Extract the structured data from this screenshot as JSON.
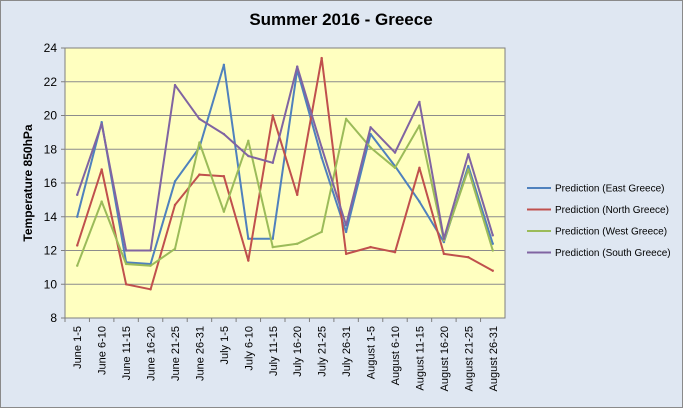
{
  "chart_data": {
    "type": "line",
    "title": "Summer 2016 - Greece",
    "xlabel": "",
    "ylabel": "Temperature 850hPa",
    "ylim": [
      8,
      24
    ],
    "yticks": [
      8,
      10,
      12,
      14,
      16,
      18,
      20,
      22,
      24
    ],
    "grid": "horizontal",
    "legend_position": "right",
    "categories": [
      "June 1-5",
      "June 6-10",
      "June 11-15",
      "June 16-20",
      "June 21-25",
      "June 26-31",
      "July 1-5",
      "July 6-10",
      "July 11-15",
      "July 16-20",
      "July 21-25",
      "July 26-31",
      "August 1-5",
      "August 6-10",
      "August 11-15",
      "August 16-20",
      "August 21-25",
      "August 26-31"
    ],
    "series": [
      {
        "name": "Prediction (East Greece)",
        "color": "#4f81bd",
        "values": [
          14.0,
          19.6,
          11.3,
          11.2,
          16.1,
          18.1,
          23.0,
          12.7,
          12.7,
          22.7,
          17.5,
          13.1,
          18.9,
          17.0,
          14.9,
          12.5,
          17.0,
          12.4
        ]
      },
      {
        "name": "Prediction (North Greece)",
        "color": "#c0504d",
        "values": [
          12.3,
          16.8,
          10.0,
          9.7,
          14.7,
          16.5,
          16.4,
          11.4,
          20.0,
          15.3,
          23.4,
          11.8,
          12.2,
          11.9,
          16.9,
          11.8,
          11.6,
          10.8
        ]
      },
      {
        "name": "Prediction (West Greece)",
        "color": "#9bbb59",
        "values": [
          11.1,
          14.9,
          11.2,
          11.1,
          12.1,
          18.4,
          14.3,
          18.5,
          12.2,
          12.4,
          13.1,
          19.8,
          18.1,
          16.9,
          19.4,
          12.6,
          16.8,
          12.0
        ]
      },
      {
        "name": "Prediction (South Greece)",
        "color": "#8064a2",
        "values": [
          15.3,
          19.5,
          12.0,
          12.0,
          21.8,
          19.8,
          18.9,
          17.6,
          17.2,
          22.9,
          18.1,
          13.5,
          19.3,
          17.8,
          20.8,
          12.7,
          17.7,
          12.9
        ]
      }
    ]
  }
}
